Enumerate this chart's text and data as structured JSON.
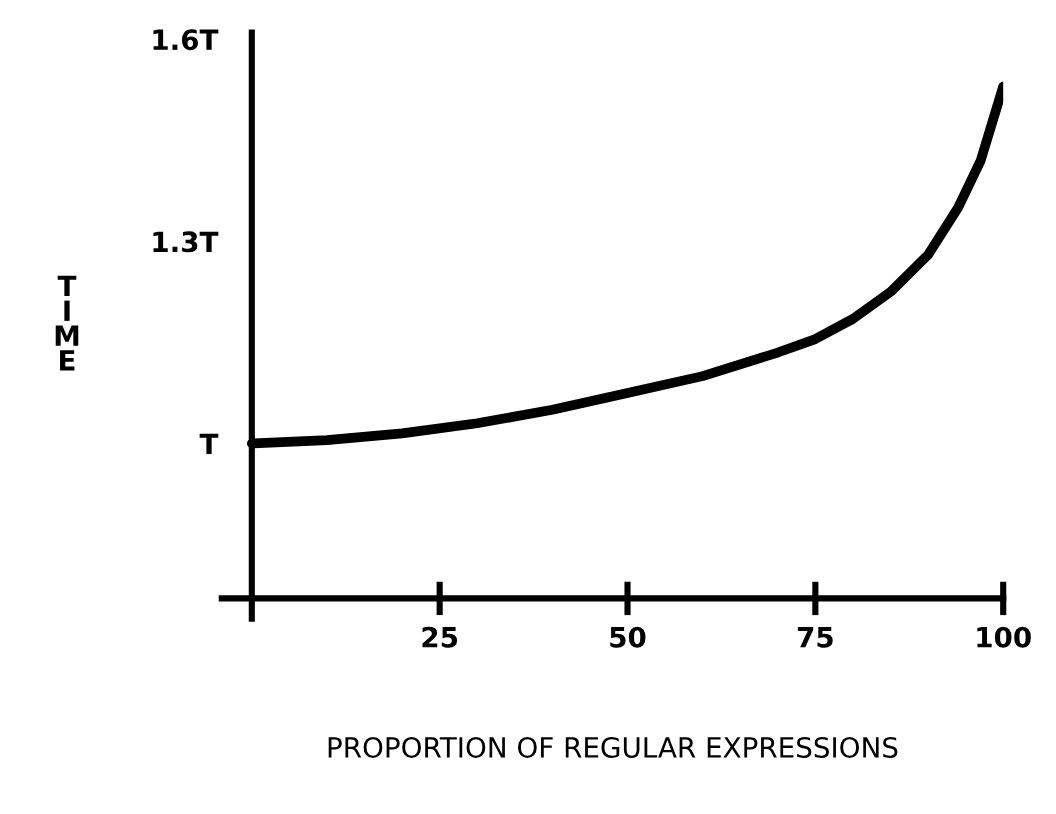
{
  "chart_data": {
    "type": "line",
    "x": [
      0,
      10,
      20,
      30,
      40,
      50,
      60,
      70,
      75,
      80,
      85,
      90,
      94,
      97,
      100
    ],
    "series": [
      {
        "color": "#000000",
        "values": [
          1.0,
          1.005,
          1.015,
          1.03,
          1.05,
          1.075,
          1.1,
          1.135,
          1.155,
          1.185,
          1.225,
          1.28,
          1.35,
          1.42,
          1.53
        ]
      }
    ],
    "xlabel": "PROPORTION OF REGULAR EXPRESSIONS",
    "ylabel": "TIME",
    "xlim": [
      -4,
      100
    ],
    "ylim": [
      0.74,
      1.61
    ],
    "xticks": [
      25,
      50,
      75,
      100
    ],
    "yticks": [
      {
        "value": 1,
        "label": "T"
      },
      {
        "value": 1.3,
        "label": "1.3T"
      },
      {
        "value": 1.6,
        "label": "1.6T"
      }
    ],
    "grid": false,
    "legend": false,
    "marker": "none",
    "line_style": "solid"
  }
}
